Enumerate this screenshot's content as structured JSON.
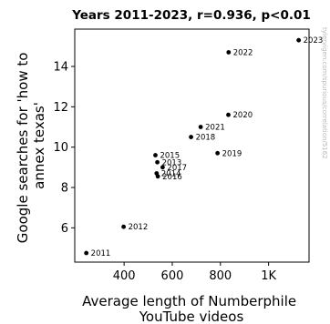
{
  "chart_data": {
    "type": "scatter",
    "title": "Years 2011-2023, r=0.936, p<0.01",
    "xlabel_lines": [
      "Average length of Numberphile",
      "YouTube videos"
    ],
    "ylabel_lines": [
      "Google searches for 'how to",
      "annex texas'"
    ],
    "xlim": [
      195,
      1168
    ],
    "ylim": [
      4.3,
      15.85
    ],
    "xticks": [
      400,
      600,
      800,
      1000
    ],
    "xtick_labels": [
      "400",
      "600",
      "800",
      "1K"
    ],
    "yticks": [
      6,
      8,
      10,
      12,
      14
    ],
    "ytick_labels": [
      "6",
      "8",
      "10",
      "12",
      "14"
    ],
    "points": [
      {
        "label": "2011",
        "x": 243,
        "y": 4.75
      },
      {
        "label": "2012",
        "x": 398,
        "y": 6.05
      },
      {
        "label": "2013",
        "x": 538,
        "y": 9.25
      },
      {
        "label": "2014",
        "x": 535,
        "y": 8.7
      },
      {
        "label": "2015",
        "x": 530,
        "y": 9.6
      },
      {
        "label": "2016",
        "x": 540,
        "y": 8.55
      },
      {
        "label": "2017",
        "x": 560,
        "y": 9.0
      },
      {
        "label": "2018",
        "x": 678,
        "y": 10.5
      },
      {
        "label": "2019",
        "x": 788,
        "y": 9.7
      },
      {
        "label": "2020",
        "x": 833,
        "y": 11.6
      },
      {
        "label": "2021",
        "x": 718,
        "y": 11.0
      },
      {
        "label": "2022",
        "x": 834,
        "y": 14.7
      },
      {
        "label": "2023",
        "x": 1125,
        "y": 15.3
      }
    ],
    "marker_color": "#000000",
    "grid": false,
    "watermark": "tylervigen.com/spurious/correlation/5162"
  }
}
